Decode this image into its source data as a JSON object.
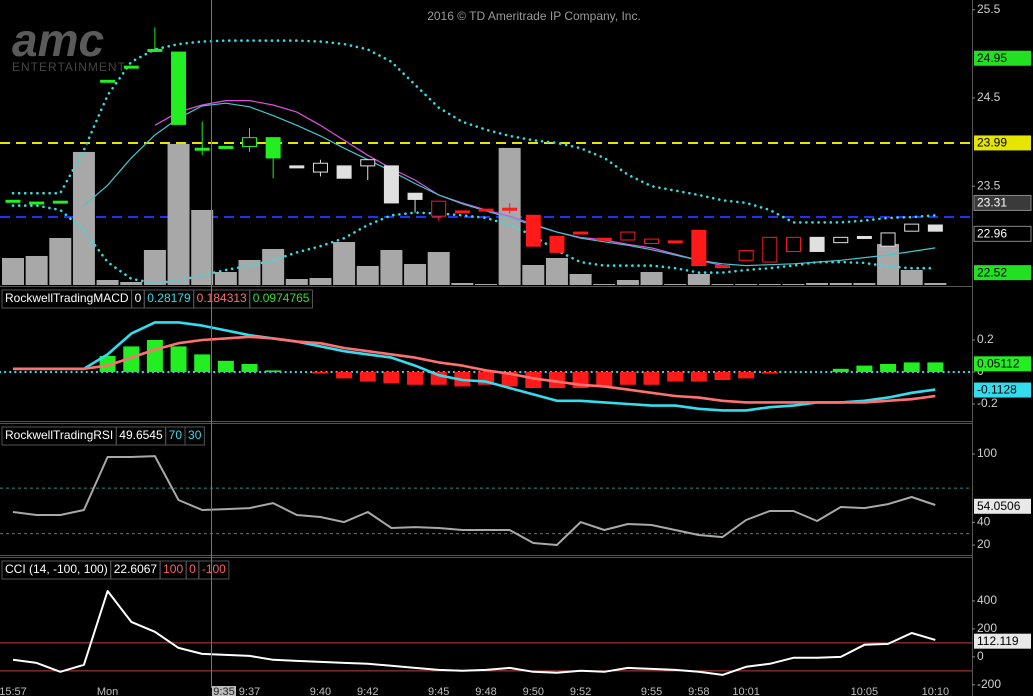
{
  "chart_data": [
    {
      "type": "candlestick",
      "watermark": "2016 © TD Ameritrade IP Company, Inc.",
      "logo": "amc",
      "logo_tagline": "ENTERTAINMENT",
      "cursor_label": "9:35",
      "categories": [
        "15:57",
        null,
        null,
        null,
        "Mon",
        null,
        null,
        null,
        null,
        null,
        "9:37",
        null,
        null,
        "9:40",
        null,
        "9:42",
        null,
        null,
        "9:45",
        null,
        "9:48",
        null,
        "9:50",
        null,
        "9:52",
        null,
        null,
        "9:55",
        null,
        "9:58",
        null,
        "10:01",
        null,
        null,
        null,
        null,
        "10:05",
        null,
        null,
        "10:10"
      ],
      "open": [
        23.34,
        23.32,
        23.33,
        null,
        24.7,
        24.86,
        25.05,
        25.02,
        23.93,
        23.95,
        23.95,
        24.05,
        23.73,
        23.66,
        23.73,
        23.73,
        23.73,
        23.42,
        23.16,
        23.22,
        23.24,
        23.25,
        23.17,
        22.93,
        22.98,
        22.91,
        22.89,
        22.85,
        22.88,
        23.0,
        22.6,
        22.66,
        22.64,
        22.76,
        22.92,
        22.86,
        22.93,
        22.82,
        22.99,
        23.06
      ],
      "high": [
        23.34,
        23.32,
        23.33,
        null,
        24.7,
        24.86,
        25.3,
        25.02,
        24.23,
        23.95,
        24.16,
        24.05,
        23.73,
        23.8,
        23.73,
        23.8,
        23.73,
        23.42,
        23.33,
        23.22,
        23.24,
        23.31,
        23.17,
        22.93,
        22.98,
        22.91,
        22.98,
        22.9,
        22.88,
        23.0,
        22.6,
        22.77,
        22.92,
        22.92,
        22.92,
        22.92,
        22.93,
        22.97,
        23.07,
        23.06
      ],
      "low": [
        23.34,
        23.32,
        23.33,
        null,
        24.7,
        24.86,
        25.02,
        24.2,
        23.85,
        23.95,
        23.89,
        23.59,
        23.73,
        23.61,
        23.59,
        23.57,
        23.31,
        23.2,
        23.11,
        23.22,
        23.24,
        23.19,
        22.82,
        22.75,
        22.98,
        22.91,
        22.89,
        22.85,
        22.88,
        22.6,
        22.6,
        22.66,
        22.64,
        22.76,
        22.76,
        22.86,
        22.93,
        22.82,
        22.99,
        22.99
      ],
      "close": [
        23.34,
        23.32,
        23.33,
        null,
        24.7,
        24.86,
        25.05,
        24.2,
        23.93,
        23.95,
        24.05,
        23.82,
        23.73,
        23.76,
        23.59,
        23.8,
        23.31,
        23.35,
        23.33,
        23.22,
        23.24,
        23.25,
        22.82,
        22.75,
        22.98,
        22.91,
        22.98,
        22.9,
        22.88,
        22.6,
        22.6,
        22.77,
        22.92,
        22.92,
        22.76,
        22.92,
        22.93,
        22.97,
        23.07,
        22.99
      ],
      "colors": [
        "#22ee22",
        "#22ee22",
        "#22ee22",
        null,
        "#22ee22",
        "#22ee22",
        "#22ee22",
        "#22ee22",
        "#22ee22",
        "#22ee22",
        "#22ee22",
        "#22ee22",
        "#e0e0e0",
        "#e0e0e0",
        "#e0e0e0",
        "#e0e0e0",
        "#e0e0e0",
        "#e0e0e0",
        "#ff1a1a",
        "#ff1a1a",
        "#ff1a1a",
        "#ff1a1a",
        "#ff1a1a",
        "#ff1a1a",
        "#ff1a1a",
        "#ff1a1a",
        "#ff1a1a",
        "#ff1a1a",
        "#ff1a1a",
        "#ff1a1a",
        "#ff1a1a",
        "#ff1a1a",
        "#ff1a1a",
        "#ff1a1a",
        "#e0e0e0",
        "#e0e0e0",
        "#e0e0e0",
        "#e0e0e0",
        "#e0e0e0",
        "#e0e0e0"
      ],
      "volume": [
        27,
        29,
        47,
        133,
        5,
        3,
        35,
        141,
        75,
        13,
        25,
        36,
        6,
        7,
        43,
        19,
        35,
        21,
        33,
        2,
        1,
        137,
        20,
        27,
        11,
        1,
        5,
        13,
        1,
        11,
        1,
        1,
        1,
        1,
        2,
        2,
        2,
        41,
        15,
        2
      ],
      "volume_color": "#a8a8a8",
      "overlays": [
        {
          "color": "#33dde0",
          "style": "dotted",
          "values": [
            23.42,
            23.42,
            23.42,
            23.91,
            24.53,
            24.91,
            25.05,
            25.11,
            25.14,
            25.15,
            25.15,
            25.15,
            25.15,
            25.14,
            25.11,
            25.05,
            24.91,
            24.65,
            24.39,
            24.23,
            24.14,
            24.07,
            24.02,
            23.99,
            23.93,
            23.82,
            23.63,
            23.5,
            23.45,
            23.4,
            23.34,
            23.31,
            23.23,
            23.09,
            23.09,
            23.09,
            23.11,
            23.14,
            23.15,
            23.17
          ]
        },
        {
          "color": "#33dde0",
          "style": "dotted",
          "values": [
            23.28,
            23.28,
            23.23,
            23.0,
            22.64,
            22.45,
            22.4,
            22.43,
            22.49,
            22.55,
            22.6,
            22.66,
            22.75,
            22.82,
            22.91,
            23.06,
            23.17,
            23.2,
            23.19,
            23.17,
            23.14,
            23.06,
            22.94,
            22.77,
            22.64,
            22.6,
            22.6,
            22.6,
            22.57,
            22.52,
            22.52,
            22.55,
            22.57,
            22.6,
            22.64,
            22.64,
            22.63,
            22.59,
            22.57,
            22.57
          ]
        },
        {
          "color": "#e050e0",
          "style": "solid",
          "values": [
            null,
            null,
            null,
            null,
            null,
            null,
            24.19,
            24.34,
            24.42,
            24.47,
            24.47,
            24.42,
            24.34,
            24.19,
            24.02,
            23.85,
            23.7,
            23.57,
            23.4,
            23.31,
            23.23,
            23.16,
            23.07,
            22.98,
            22.92,
            22.89,
            22.84,
            22.8,
            22.73,
            22.66,
            22.6,
            null,
            null,
            null,
            null,
            null,
            null,
            null,
            null,
            null
          ]
        },
        {
          "color": "#40c8d0",
          "style": "solid",
          "values": [
            null,
            null,
            null,
            23.28,
            23.51,
            23.82,
            24.08,
            24.27,
            24.41,
            24.44,
            24.4,
            24.3,
            24.19,
            24.07,
            23.93,
            23.8,
            23.67,
            23.53,
            23.4,
            23.3,
            23.22,
            23.14,
            23.06,
            22.98,
            22.91,
            22.87,
            22.83,
            22.78,
            22.72,
            22.66,
            22.62,
            22.6,
            22.61,
            22.62,
            22.64,
            22.66,
            22.69,
            22.72,
            22.76,
            22.8
          ]
        }
      ],
      "levels": [
        {
          "value": 23.99,
          "color": "#e5e500"
        },
        {
          "value": 23.15,
          "color": "#2030ff"
        }
      ],
      "ylim": [
        22.38,
        25.61
      ],
      "yticks": [
        25.5,
        24.5,
        23.5
      ],
      "last_values": [
        24.95,
        23.99,
        23.31,
        22.96,
        22.52
      ],
      "last_value_colors": [
        "#22e022",
        "#e5e500",
        "#3a3a3a",
        "#000000",
        "#22e022"
      ]
    },
    {
      "type": "macd",
      "title": "RockwellTradingMACD",
      "readouts": [
        0,
        0.28179,
        0.184313,
        0.0974765
      ],
      "readout_colors": [
        "#ffffff",
        "#33ddee",
        "#ff7070",
        "#33dd33"
      ],
      "series": [
        {
          "color": "#33ddee",
          "values": [
            0.02,
            0.02,
            0.02,
            0.02,
            0.11,
            0.24,
            0.31,
            0.31,
            0.29,
            0.26,
            0.23,
            0.21,
            0.19,
            0.16,
            0.13,
            0.11,
            0.09,
            0.04,
            -0.02,
            -0.05,
            -0.06,
            -0.1,
            -0.14,
            -0.18,
            -0.18,
            -0.19,
            -0.2,
            -0.21,
            -0.21,
            -0.23,
            -0.24,
            -0.24,
            -0.22,
            -0.21,
            -0.19,
            -0.19,
            -0.18,
            -0.16,
            -0.13,
            -0.11
          ]
        },
        {
          "color": "#ff7070",
          "values": [
            0.02,
            0.02,
            0.02,
            0.02,
            0.04,
            0.09,
            0.14,
            0.18,
            0.2,
            0.21,
            0.22,
            0.21,
            0.19,
            0.18,
            0.15,
            0.13,
            0.11,
            0.09,
            0.06,
            0.04,
            0.01,
            -0.01,
            -0.04,
            -0.06,
            -0.08,
            -0.09,
            -0.11,
            -0.13,
            -0.15,
            -0.16,
            -0.18,
            -0.19,
            -0.19,
            -0.19,
            -0.19,
            -0.19,
            -0.19,
            -0.18,
            -0.17,
            -0.15
          ]
        }
      ],
      "histogram": [
        0,
        0,
        0,
        0,
        0.1,
        0.16,
        0.2,
        0.16,
        0.11,
        0.07,
        0.05,
        0.01,
        0,
        -0.01,
        -0.04,
        -0.06,
        -0.07,
        -0.08,
        -0.08,
        -0.09,
        -0.08,
        -0.09,
        -0.1,
        -0.1,
        -0.1,
        -0.09,
        -0.08,
        -0.08,
        -0.06,
        -0.06,
        -0.05,
        -0.04,
        -0.01,
        0,
        0,
        0.02,
        0.04,
        0.05,
        0.06,
        0.06
      ],
      "hist_colors": [
        "#22ee22",
        "#ff1a1a"
      ],
      "zero_line_color": "#33ddee",
      "ylim": [
        -0.3,
        0.525
      ],
      "yticks": [
        0.2,
        0,
        -0.2
      ],
      "last_values": [
        0.05112,
        -0.1128
      ],
      "last_value_colors": [
        "#22ee22",
        "#33ddee"
      ]
    },
    {
      "type": "line",
      "title": "RockwellTradingRSI",
      "readouts": [
        49.6545,
        70,
        30
      ],
      "readout_colors": [
        "#ffffff",
        "#33ddee",
        "#33ddee"
      ],
      "series": [
        {
          "color": "#a8a8a8",
          "values": [
            49,
            46.4,
            46.4,
            50.8,
            97.4,
            97.4,
            98.2,
            59.6,
            50.8,
            51.6,
            52.5,
            56.9,
            46.4,
            44.6,
            40.2,
            49,
            35,
            35.8,
            35,
            33.2,
            33.2,
            33.2,
            21.8,
            20,
            40.2,
            33.2,
            38.5,
            37.6,
            33.2,
            28.8,
            27,
            42,
            49.9,
            49.9,
            41.1,
            53.4,
            52.5,
            56,
            62.2,
            55.2
          ]
        }
      ],
      "levels": [
        {
          "value": 70,
          "color": "#2a8a8a"
        },
        {
          "value": 30,
          "color": "#2a8a8a"
        }
      ],
      "ylim": [
        13,
        125.5
      ],
      "yticks": [
        100,
        40,
        20
      ],
      "last_values": [
        54.0506
      ],
      "last_value_colors": [
        "#e8e8e8"
      ]
    },
    {
      "type": "line",
      "title": "CCI (14, -100, 100)",
      "readouts": [
        22.6067,
        100,
        0,
        -100
      ],
      "readout_colors": [
        "#ffffff",
        "#ff6060",
        "#ff6060",
        "#ff6060"
      ],
      "series": [
        {
          "color": "#ffffff",
          "values": [
            -21,
            -43,
            -107,
            -57,
            471,
            250,
            179,
            64,
            21,
            14,
            7,
            -21,
            -29,
            -36,
            -43,
            -50,
            -64,
            -79,
            -93,
            -100,
            -93,
            -79,
            -107,
            -114,
            -100,
            -107,
            -79,
            -86,
            -93,
            -107,
            -129,
            -71,
            -50,
            -7,
            -7,
            0,
            86,
            93,
            171,
            121
          ]
        }
      ],
      "levels": [
        {
          "value": 100,
          "color": "#c04040"
        },
        {
          "value": -100,
          "color": "#c04040"
        }
      ],
      "ylim": [
        -280,
        700
      ],
      "yticks": [
        400,
        200,
        0,
        -200
      ],
      "last_values": [
        112.119
      ],
      "last_value_colors": [
        "#e8e8e8"
      ]
    }
  ]
}
